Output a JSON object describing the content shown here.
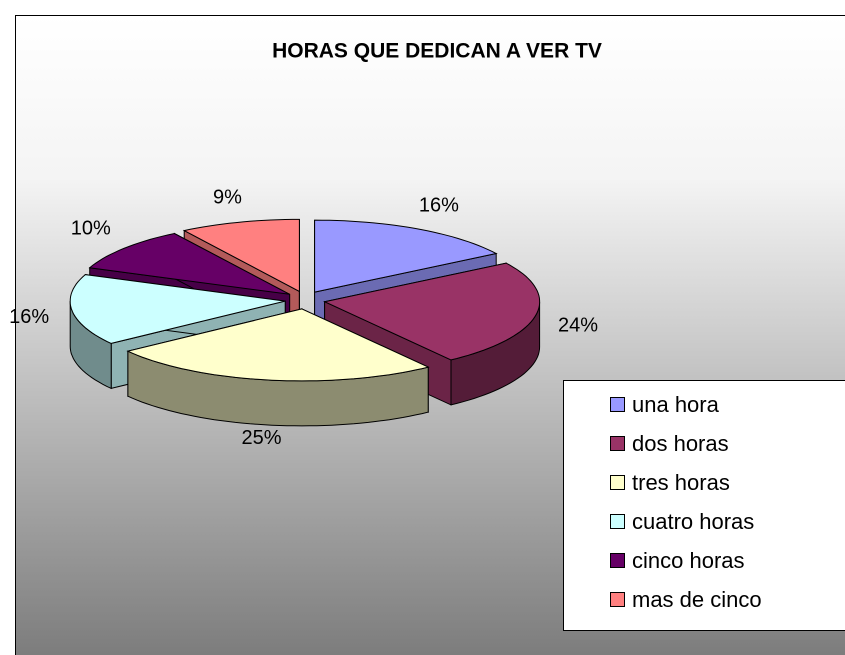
{
  "chart_data": {
    "type": "pie",
    "title": "HORAS QUE DEDICAN A VER TV",
    "categories": [
      "una hora",
      "dos horas",
      "tres horas",
      "cuatro horas",
      "cinco horas",
      "mas de cinco"
    ],
    "values": [
      16,
      24,
      25,
      16,
      10,
      9
    ],
    "value_labels": [
      "16%",
      "24%",
      "25%",
      "16%",
      "10%",
      "9%"
    ],
    "colors": [
      "#9999ff",
      "#993366",
      "#ffffcc",
      "#ccffff",
      "#660066",
      "#ff8080"
    ],
    "legend": "right"
  }
}
